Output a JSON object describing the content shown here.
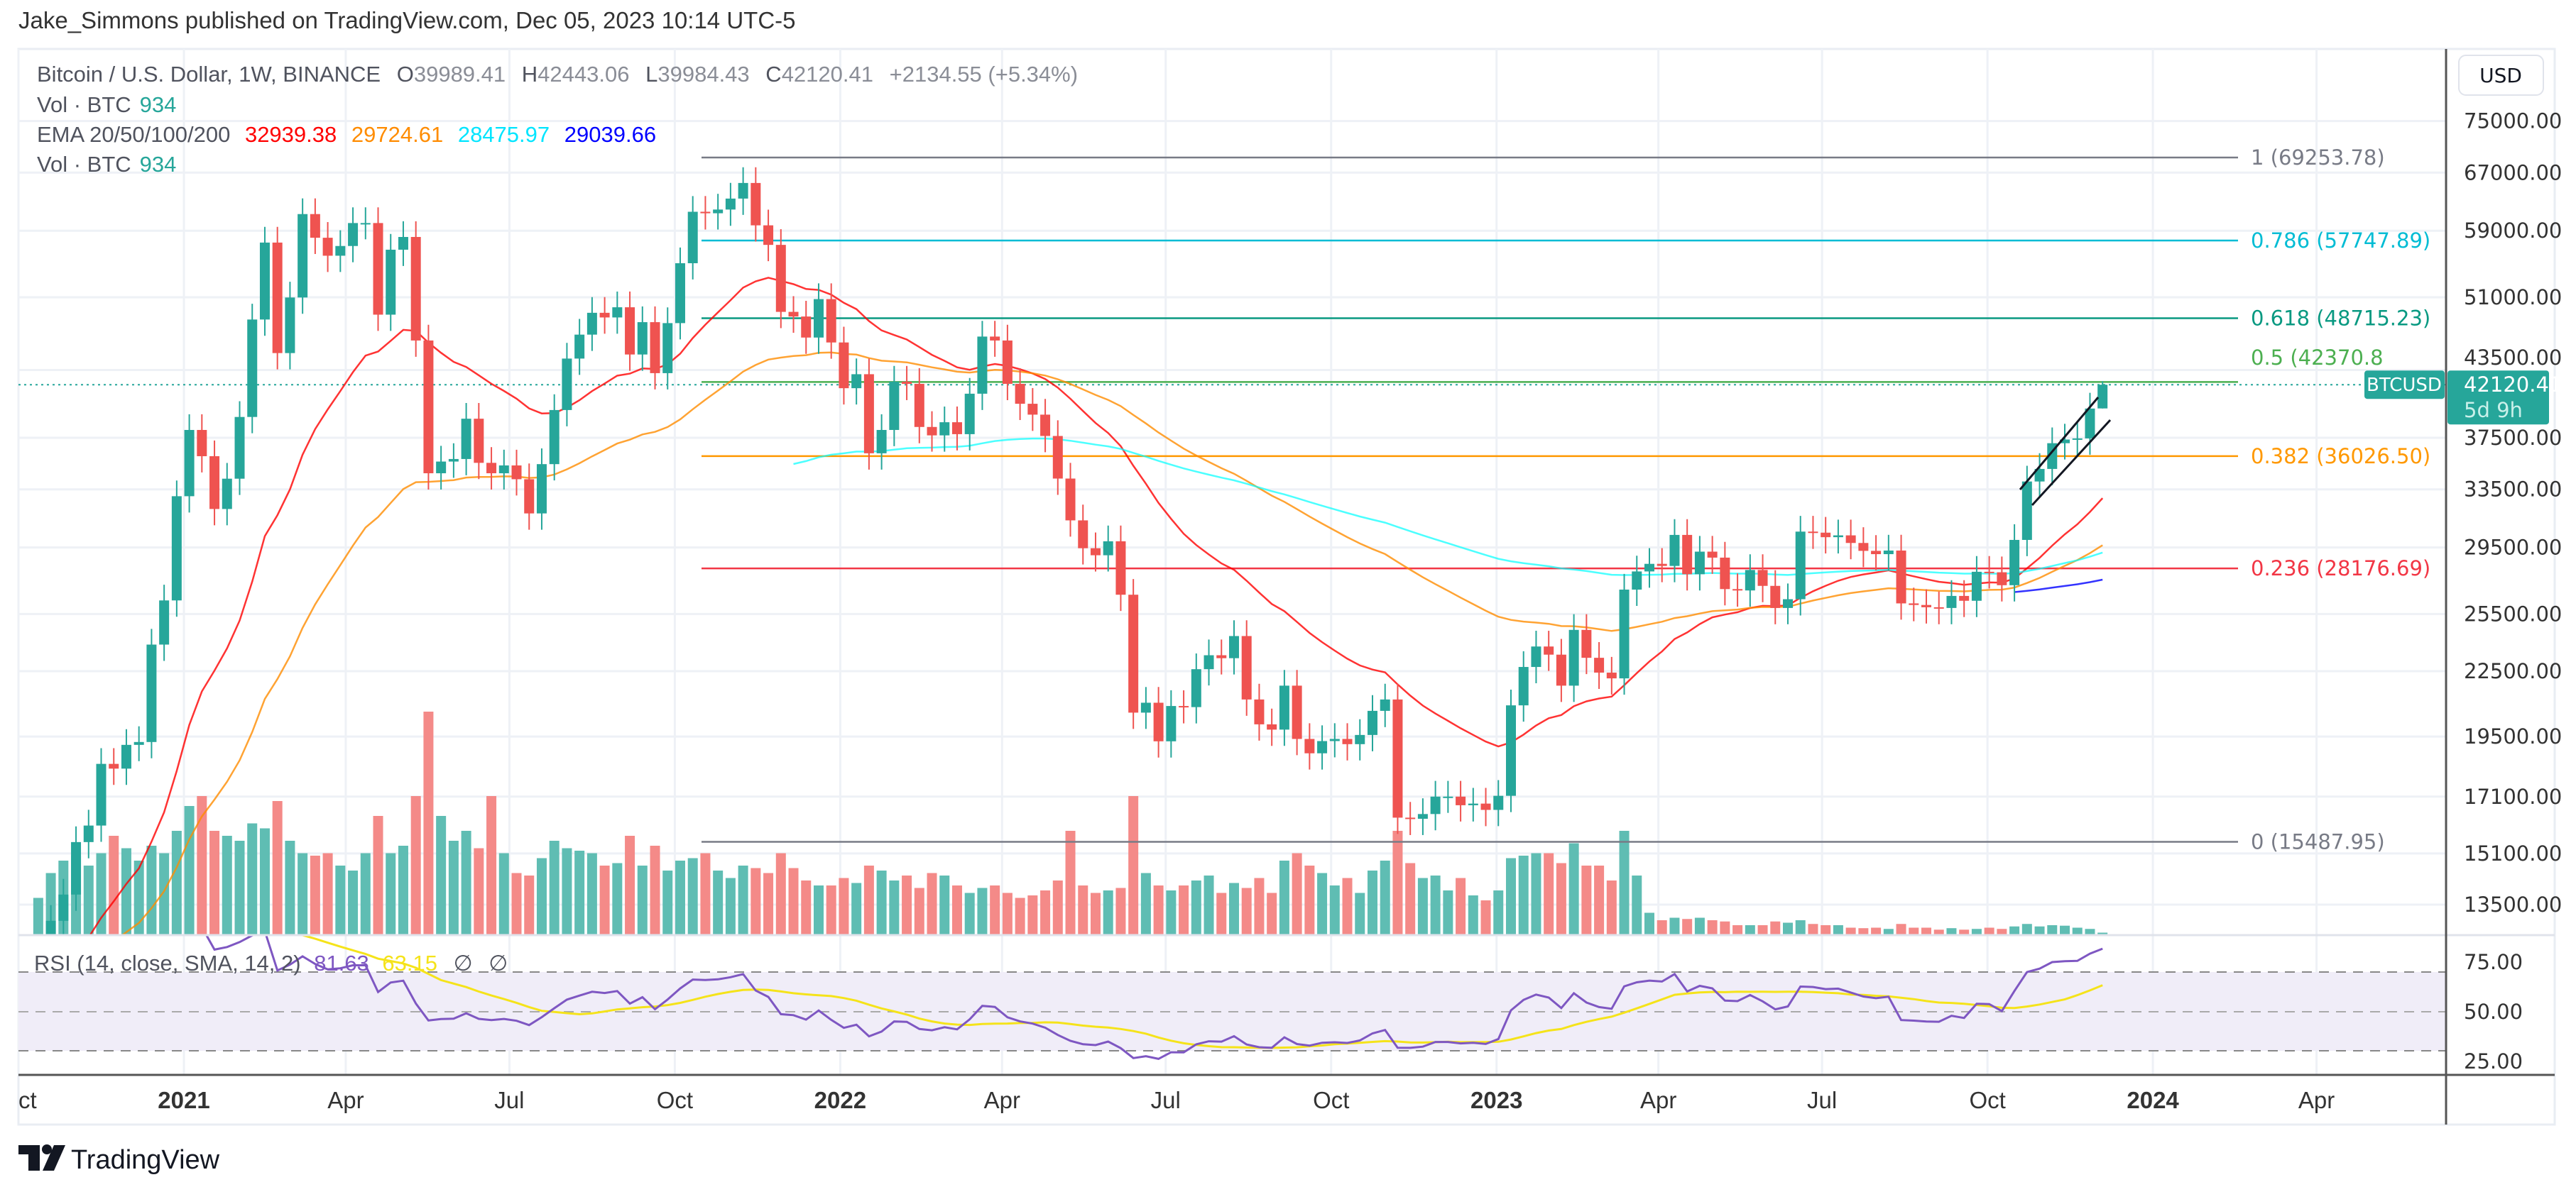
{
  "header": {
    "published": "Jake_Simmons published on TradingView.com, Dec 05, 2023 10:14 UTC-5"
  },
  "legend": {
    "symbol": "Bitcoin / U.S. Dollar, 1W, BINANCE",
    "o_label": "O",
    "o": "39989.41",
    "h_label": "H",
    "h": "42443.06",
    "l_label": "L",
    "l": "39984.43",
    "c_label": "C",
    "c": "42120.41",
    "change": "+2134.55 (+5.34%)",
    "vol_label": "Vol · BTC",
    "vol": "934",
    "ema_label": "EMA 20/50/100/200",
    "ema20": "32939.38",
    "ema50": "29724.61",
    "ema100": "28475.97",
    "ema200": "29039.66",
    "vol2_label": "Vol · BTC",
    "vol2": "934"
  },
  "rsi_legend": {
    "label": "RSI (14, close, SMA, 14, 2)",
    "rsi": "81.63",
    "sma": "63.15",
    "na1": "∅",
    "na2": "∅"
  },
  "price_axis": {
    "currency": "USD",
    "ticks": [
      {
        "v": 75000,
        "label": "75000.00"
      },
      {
        "v": 67000,
        "label": "67000.00"
      },
      {
        "v": 59000,
        "label": "59000.00"
      },
      {
        "v": 51000,
        "label": "51000.00"
      },
      {
        "v": 43500,
        "label": "43500.00"
      },
      {
        "v": 37500,
        "label": "37500.00"
      },
      {
        "v": 33500,
        "label": "33500.00"
      },
      {
        "v": 29500,
        "label": "29500.00"
      },
      {
        "v": 25500,
        "label": "25500.00"
      },
      {
        "v": 22500,
        "label": "22500.00"
      },
      {
        "v": 19500,
        "label": "19500.00"
      },
      {
        "v": 17100,
        "label": "17100.00"
      },
      {
        "v": 15100,
        "label": "15100.00"
      },
      {
        "v": 13500,
        "label": "13500.00"
      }
    ],
    "last_price": "42120.41",
    "countdown": "5d 9h",
    "symbol_tag": "BTCUSD"
  },
  "rsi_axis": {
    "ticks": [
      {
        "v": 75,
        "label": "75.00"
      },
      {
        "v": 50,
        "label": "50.00"
      },
      {
        "v": 25,
        "label": "25.00"
      }
    ],
    "band": [
      30,
      70
    ]
  },
  "time_axis": [
    {
      "date": "2020-10-01",
      "label": "Oct",
      "year": false
    },
    {
      "date": "2021-01-01",
      "label": "2021",
      "year": true
    },
    {
      "date": "2021-04-01",
      "label": "Apr",
      "year": false
    },
    {
      "date": "2021-07-01",
      "label": "Jul",
      "year": false
    },
    {
      "date": "2021-10-01",
      "label": "Oct",
      "year": false
    },
    {
      "date": "2022-01-01",
      "label": "2022",
      "year": true
    },
    {
      "date": "2022-04-01",
      "label": "Apr",
      "year": false
    },
    {
      "date": "2022-07-01",
      "label": "Jul",
      "year": false
    },
    {
      "date": "2022-10-01",
      "label": "Oct",
      "year": false
    },
    {
      "date": "2023-01-01",
      "label": "2023",
      "year": true
    },
    {
      "date": "2023-04-01",
      "label": "Apr",
      "year": false
    },
    {
      "date": "2023-07-01",
      "label": "Jul",
      "year": false
    },
    {
      "date": "2023-10-01",
      "label": "Oct",
      "year": false
    },
    {
      "date": "2024-01-01",
      "label": "2024",
      "year": true
    },
    {
      "date": "2024-04-01",
      "label": "Apr",
      "year": false
    }
  ],
  "fib_levels": [
    {
      "ratio": "1",
      "price": 69253.78,
      "label": "1 (69253.78)",
      "color": "#787b86"
    },
    {
      "ratio": "0.786",
      "price": 57747.89,
      "label": "0.786 (57747.89)",
      "color": "#00bcd4"
    },
    {
      "ratio": "0.618",
      "price": 48715.23,
      "label": "0.618 (48715.23)",
      "color": "#089981"
    },
    {
      "ratio": "0.5",
      "price": 42370.8,
      "label": "0.5 (42370.8",
      "color": "#4caf50"
    },
    {
      "ratio": "0.382",
      "price": 36026.5,
      "label": "0.382 (36026.50)",
      "color": "#ff9800"
    },
    {
      "ratio": "0.236",
      "price": 28176.69,
      "label": "0.236 (28176.69)",
      "color": "#f23645"
    },
    {
      "ratio": "0",
      "price": 15487.95,
      "label": "0 (15487.95)",
      "color": "#787b86"
    }
  ],
  "colors": {
    "up": "#26a69a",
    "down": "#ef5350",
    "vol_up": "#5fbdb3",
    "vol_down": "#f48a88",
    "ema20": "#ff0000",
    "ema50": "#ff8c00",
    "ema100": "#00ffff",
    "ema200": "#0000ff",
    "rsi": "#7e57c2",
    "rsi_sma": "#f5e31a",
    "rsi_band": "#f0edf8"
  },
  "chart_data": {
    "type": "candlestick",
    "title": "Bitcoin / U.S. Dollar, 1W, BINANCE",
    "interval": "1W",
    "start_week": "2020-10-12",
    "y_scale": "log",
    "ylim": [
      12600,
      87800
    ],
    "open_first": 11370,
    "last_candle": {
      "open": 39989.41,
      "high": 42443.06,
      "low": 39984.43,
      "close": 42120.41
    },
    "close": [
      11500,
      13030,
      13800,
      15480,
      16050,
      18370,
      18180,
      19150,
      19270,
      23850,
      26270,
      33000,
      38150,
      36020,
      32090,
      34290,
      39250,
      48580,
      57490,
      45140,
      50980,
      61190,
      58100,
      55860,
      57060,
      60000,
      60000,
      49100,
      56600,
      58200,
      46400,
      34700,
      35600,
      35800,
      39100,
      35500,
      34700,
      35300,
      34250,
      31780,
      35400,
      39850,
      44600,
      47000,
      49300,
      48800,
      49900,
      45000,
      48300,
      43200,
      48200,
      54950,
      61500,
      61300,
      61800,
      63300,
      65500,
      59700,
      57200,
      49400,
      48900,
      46700,
      50800,
      46200,
      41800,
      43100,
      36250,
      38150,
      42400,
      42200,
      38400,
      37700,
      38800,
      37800,
      41300,
      46800,
      46400,
      42200,
      40400,
      39450,
      37650,
      34300,
      31300,
      29450,
      29000,
      29900,
      26600,
      20550,
      21000,
      19300,
      20850,
      20800,
      22600,
      23300,
      23150,
      24300,
      21150,
      20030,
      19800,
      21800,
      19400,
      18800,
      19310,
      19400,
      19180,
      19570,
      20630,
      21150,
      16330,
      16290,
      16460,
      17100,
      17100,
      16780,
      16840,
      16610,
      17130,
      20880,
      22710,
      23750,
      23330,
      21800,
      24630,
      23170,
      22430,
      22150,
      26900,
      27990,
      28460,
      28330,
      30320,
      27820,
      29230,
      28850,
      26930,
      26850,
      28080,
      27120,
      25840,
      26340,
      30540,
      30470,
      30170,
      30290,
      29790,
      29280,
      29070,
      29300,
      26100,
      26010,
      25880,
      25840,
      26530,
      26250,
      27970,
      27940,
      27160,
      29990,
      34080,
      35030,
      37060,
      37360,
      37450,
      39980,
      42120.41
    ],
    "volume": [
      150,
      250,
      300,
      320,
      280,
      330,
      400,
      350,
      300,
      360,
      330,
      420,
      520,
      560,
      420,
      400,
      380,
      450,
      430,
      540,
      380,
      330,
      320,
      330,
      280,
      260,
      330,
      480,
      330,
      360,
      560,
      900,
      480,
      380,
      420,
      350,
      560,
      330,
      250,
      240,
      310,
      380,
      350,
      340,
      330,
      280,
      290,
      400,
      280,
      360,
      260,
      300,
      310,
      330,
      260,
      230,
      280,
      270,
      250,
      330,
      270,
      220,
      200,
      200,
      230,
      210,
      280,
      260,
      220,
      240,
      190,
      250,
      240,
      200,
      170,
      190,
      200,
      170,
      150,
      160,
      180,
      220,
      420,
      200,
      170,
      180,
      190,
      560,
      250,
      200,
      180,
      200,
      220,
      240,
      170,
      210,
      190,
      230,
      170,
      300,
      330,
      280,
      250,
      200,
      230,
      170,
      260,
      300,
      420,
      290,
      230,
      240,
      180,
      230,
      160,
      140,
      180,
      310,
      320,
      330,
      330,
      290,
      370,
      280,
      280,
      220,
      420,
      240,
      90,
      60,
      70,
      65,
      70,
      60,
      55,
      40,
      40,
      40,
      55,
      50,
      60,
      45,
      40,
      40,
      30,
      28,
      30,
      25,
      45,
      30,
      30,
      22,
      28,
      22,
      25,
      30,
      25,
      35,
      45,
      35,
      40,
      38,
      30,
      25,
      10
    ],
    "ema_periods": [
      20,
      50,
      100,
      200
    ],
    "rsi": {
      "length": 14,
      "source": "close",
      "ma": "SMA",
      "ma_length": 14
    }
  }
}
